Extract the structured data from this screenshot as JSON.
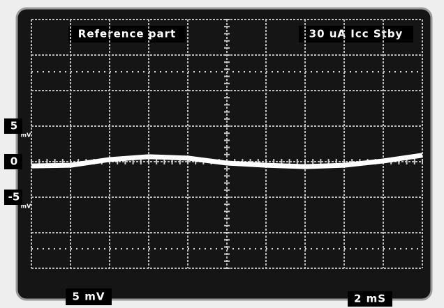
{
  "chart_data": {
    "type": "line",
    "title": "Reference part",
    "subtitle": "30 uA Icc Stby",
    "vertical_scale_label": "5 mV",
    "time_scale_label": "2 mS",
    "y_unit": "mV",
    "x": [
      0,
      2,
      4,
      6,
      8,
      10,
      12,
      14,
      16,
      18,
      20
    ],
    "series": [
      {
        "color": "#ffffff",
        "values": [
          -0.6,
          -0.5,
          0.3,
          0.7,
          0.5,
          -0.2,
          -0.5,
          -0.7,
          -0.5,
          0.1,
          0.9
        ]
      }
    ],
    "xlim": [
      0,
      20
    ],
    "ylim": [
      -15,
      20
    ],
    "yticks": [
      5,
      0,
      -5
    ],
    "grid": true
  }
}
